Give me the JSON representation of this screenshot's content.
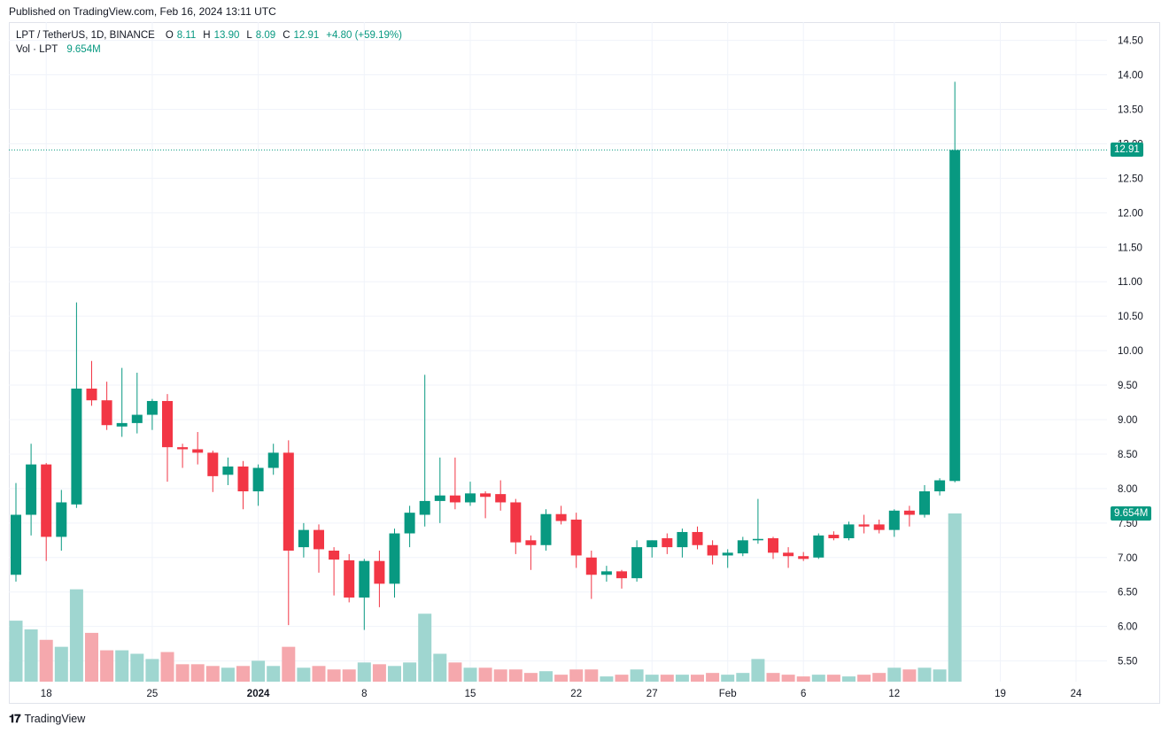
{
  "published": "Published on TradingView.com, Feb 16, 2024 13:11 UTC",
  "legend": {
    "symbol": "LPT / TetherUS, 1D, BINANCE",
    "o_label": "O",
    "o_value": "8.11",
    "h_label": "H",
    "h_value": "13.90",
    "l_label": "L",
    "l_value": "8.09",
    "c_label": "C",
    "c_value": "12.91",
    "change": "+4.80 (+59.19%)",
    "vol_label": "Vol · LPT",
    "vol_value": "9.654M"
  },
  "footer": {
    "brand": "TradingView",
    "logo_icon": "tradingview-logo-icon"
  },
  "colors": {
    "up": "#089981",
    "down": "#f23645",
    "vol_up": "#9fd6d0",
    "vol_down": "#f5a8ad",
    "grid": "#f0f3fa",
    "text": "#131722"
  },
  "chart_data": {
    "type": "candlestick",
    "y_axis_ticks": [
      "5.50",
      "6.00",
      "6.50",
      "7.00",
      "7.50",
      "8.00",
      "8.50",
      "9.00",
      "9.50",
      "10.00",
      "10.50",
      "11.00",
      "11.50",
      "12.00",
      "12.50",
      "13.00",
      "13.50",
      "14.00",
      "14.50"
    ],
    "ylim": [
      5.2,
      14.7
    ],
    "x_axis_ticks": [
      {
        "label": "18",
        "index": 2
      },
      {
        "label": "25",
        "index": 9
      },
      {
        "label": "2024",
        "index": 16
      },
      {
        "label": "8",
        "index": 23
      },
      {
        "label": "15",
        "index": 30
      },
      {
        "label": "22",
        "index": 37
      },
      {
        "label": "27",
        "index": 42
      },
      {
        "label": "Feb",
        "index": 47
      },
      {
        "label": "6",
        "index": 52
      },
      {
        "label": "12",
        "index": 58
      },
      {
        "label": "19",
        "index": 65
      },
      {
        "label": "24",
        "index": 70
      }
    ],
    "last_price_label": "12.91",
    "last_price": 12.91,
    "last_volume_label": "9.654M",
    "volume_max_m": 9.654,
    "candles": [
      {
        "o": 6.75,
        "h": 8.08,
        "l": 6.65,
        "c": 7.62,
        "v": 3.5
      },
      {
        "o": 7.62,
        "h": 8.65,
        "l": 7.32,
        "c": 8.35,
        "v": 3.0
      },
      {
        "o": 8.35,
        "h": 8.37,
        "l": 6.95,
        "c": 7.3,
        "v": 2.4
      },
      {
        "o": 7.3,
        "h": 7.98,
        "l": 7.1,
        "c": 7.8,
        "v": 2.0
      },
      {
        "o": 7.77,
        "h": 10.7,
        "l": 7.72,
        "c": 9.45,
        "v": 5.3
      },
      {
        "o": 9.45,
        "h": 9.85,
        "l": 9.2,
        "c": 9.28,
        "v": 2.8
      },
      {
        "o": 9.28,
        "h": 9.55,
        "l": 8.85,
        "c": 8.92,
        "v": 1.8
      },
      {
        "o": 8.9,
        "h": 9.75,
        "l": 8.75,
        "c": 8.95,
        "v": 1.8
      },
      {
        "o": 8.95,
        "h": 9.68,
        "l": 8.8,
        "c": 9.07,
        "v": 1.6
      },
      {
        "o": 9.07,
        "h": 9.3,
        "l": 8.85,
        "c": 9.27,
        "v": 1.3
      },
      {
        "o": 9.27,
        "h": 9.37,
        "l": 8.1,
        "c": 8.6,
        "v": 1.7
      },
      {
        "o": 8.6,
        "h": 8.65,
        "l": 8.3,
        "c": 8.57,
        "v": 1.0
      },
      {
        "o": 8.57,
        "h": 8.82,
        "l": 8.35,
        "c": 8.52,
        "v": 1.0
      },
      {
        "o": 8.52,
        "h": 8.55,
        "l": 7.95,
        "c": 8.18,
        "v": 0.9
      },
      {
        "o": 8.2,
        "h": 8.45,
        "l": 8.05,
        "c": 8.32,
        "v": 0.8
      },
      {
        "o": 8.32,
        "h": 8.4,
        "l": 7.7,
        "c": 7.96,
        "v": 0.9
      },
      {
        "o": 7.96,
        "h": 8.35,
        "l": 7.75,
        "c": 8.3,
        "v": 1.2
      },
      {
        "o": 8.3,
        "h": 8.65,
        "l": 8.2,
        "c": 8.52,
        "v": 0.9
      },
      {
        "o": 8.52,
        "h": 8.7,
        "l": 6.02,
        "c": 7.1,
        "v": 2.0
      },
      {
        "o": 7.15,
        "h": 7.5,
        "l": 7.0,
        "c": 7.4,
        "v": 0.8
      },
      {
        "o": 7.4,
        "h": 7.48,
        "l": 6.78,
        "c": 7.12,
        "v": 0.9
      },
      {
        "o": 7.1,
        "h": 7.15,
        "l": 6.45,
        "c": 6.97,
        "v": 0.7
      },
      {
        "o": 6.96,
        "h": 7.05,
        "l": 6.35,
        "c": 6.42,
        "v": 0.7
      },
      {
        "o": 6.42,
        "h": 6.98,
        "l": 5.95,
        "c": 6.95,
        "v": 1.1
      },
      {
        "o": 6.95,
        "h": 7.1,
        "l": 6.28,
        "c": 6.62,
        "v": 1.0
      },
      {
        "o": 6.62,
        "h": 7.42,
        "l": 6.42,
        "c": 7.35,
        "v": 0.9
      },
      {
        "o": 7.35,
        "h": 7.75,
        "l": 7.15,
        "c": 7.65,
        "v": 1.1
      },
      {
        "o": 7.62,
        "h": 9.65,
        "l": 7.45,
        "c": 7.82,
        "v": 3.9
      },
      {
        "o": 7.82,
        "h": 8.45,
        "l": 7.5,
        "c": 7.9,
        "v": 1.6
      },
      {
        "o": 7.9,
        "h": 8.45,
        "l": 7.7,
        "c": 7.8,
        "v": 1.1
      },
      {
        "o": 7.8,
        "h": 8.1,
        "l": 7.75,
        "c": 7.93,
        "v": 0.8
      },
      {
        "o": 7.93,
        "h": 7.96,
        "l": 7.57,
        "c": 7.88,
        "v": 0.8
      },
      {
        "o": 7.92,
        "h": 8.12,
        "l": 7.68,
        "c": 7.8,
        "v": 0.7
      },
      {
        "o": 7.8,
        "h": 7.85,
        "l": 7.05,
        "c": 7.22,
        "v": 0.7
      },
      {
        "o": 7.25,
        "h": 7.32,
        "l": 6.82,
        "c": 7.18,
        "v": 0.5
      },
      {
        "o": 7.18,
        "h": 7.7,
        "l": 7.1,
        "c": 7.63,
        "v": 0.6
      },
      {
        "o": 7.63,
        "h": 7.75,
        "l": 7.48,
        "c": 7.53,
        "v": 0.4
      },
      {
        "o": 7.55,
        "h": 7.65,
        "l": 6.85,
        "c": 7.03,
        "v": 0.7
      },
      {
        "o": 7.0,
        "h": 7.1,
        "l": 6.4,
        "c": 6.75,
        "v": 0.7
      },
      {
        "o": 6.75,
        "h": 6.88,
        "l": 6.65,
        "c": 6.8,
        "v": 0.3
      },
      {
        "o": 6.8,
        "h": 6.82,
        "l": 6.55,
        "c": 6.7,
        "v": 0.4
      },
      {
        "o": 6.7,
        "h": 7.25,
        "l": 6.65,
        "c": 7.15,
        "v": 0.7
      },
      {
        "o": 7.15,
        "h": 7.25,
        "l": 7.0,
        "c": 7.25,
        "v": 0.4
      },
      {
        "o": 7.28,
        "h": 7.35,
        "l": 7.05,
        "c": 7.15,
        "v": 0.4
      },
      {
        "o": 7.15,
        "h": 7.42,
        "l": 7.0,
        "c": 7.37,
        "v": 0.4
      },
      {
        "o": 7.37,
        "h": 7.45,
        "l": 7.12,
        "c": 7.18,
        "v": 0.4
      },
      {
        "o": 7.18,
        "h": 7.25,
        "l": 6.9,
        "c": 7.03,
        "v": 0.5
      },
      {
        "o": 7.03,
        "h": 7.12,
        "l": 6.85,
        "c": 7.07,
        "v": 0.4
      },
      {
        "o": 7.06,
        "h": 7.3,
        "l": 7.02,
        "c": 7.25,
        "v": 0.5
      },
      {
        "o": 7.25,
        "h": 7.85,
        "l": 7.2,
        "c": 7.27,
        "v": 1.3
      },
      {
        "o": 7.28,
        "h": 7.3,
        "l": 6.98,
        "c": 7.07,
        "v": 0.5
      },
      {
        "o": 7.07,
        "h": 7.15,
        "l": 6.85,
        "c": 7.02,
        "v": 0.4
      },
      {
        "o": 7.02,
        "h": 7.08,
        "l": 6.95,
        "c": 6.98,
        "v": 0.3
      },
      {
        "o": 7.0,
        "h": 7.35,
        "l": 6.98,
        "c": 7.32,
        "v": 0.4
      },
      {
        "o": 7.33,
        "h": 7.38,
        "l": 7.25,
        "c": 7.28,
        "v": 0.4
      },
      {
        "o": 7.28,
        "h": 7.52,
        "l": 7.25,
        "c": 7.48,
        "v": 0.3
      },
      {
        "o": 7.48,
        "h": 7.62,
        "l": 7.35,
        "c": 7.45,
        "v": 0.4
      },
      {
        "o": 7.48,
        "h": 7.55,
        "l": 7.35,
        "c": 7.4,
        "v": 0.5
      },
      {
        "o": 7.4,
        "h": 7.7,
        "l": 7.3,
        "c": 7.68,
        "v": 0.8
      },
      {
        "o": 7.68,
        "h": 7.75,
        "l": 7.45,
        "c": 7.62,
        "v": 0.7
      },
      {
        "o": 7.62,
        "h": 8.05,
        "l": 7.58,
        "c": 7.96,
        "v": 0.8
      },
      {
        "o": 7.96,
        "h": 8.15,
        "l": 7.9,
        "c": 8.12,
        "v": 0.7
      },
      {
        "o": 8.11,
        "h": 13.9,
        "l": 8.09,
        "c": 12.91,
        "v": 9.654
      }
    ]
  }
}
